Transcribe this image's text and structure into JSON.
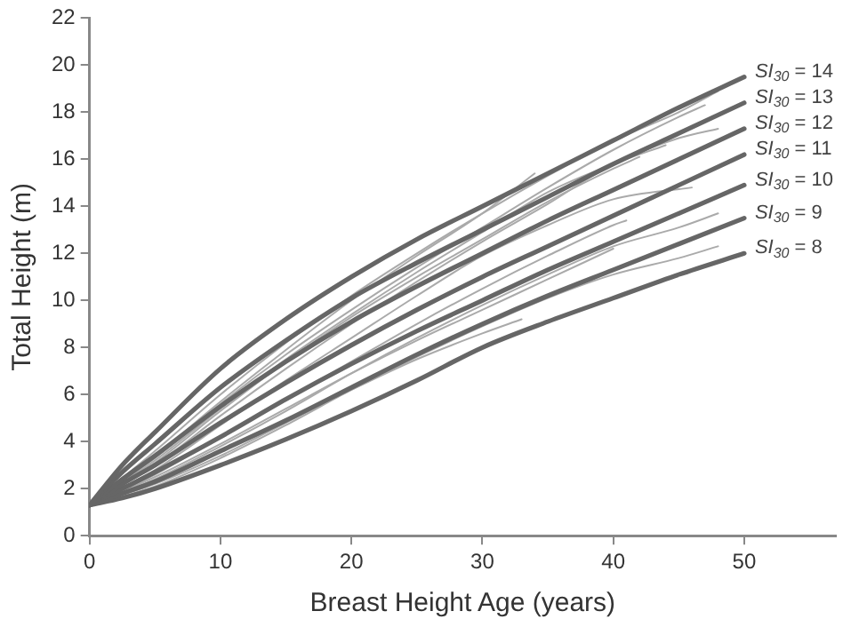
{
  "chart_data": {
    "type": "line",
    "xlabel": "Breast Height Age (years)",
    "ylabel": "Total Height (m)",
    "xlim": [
      0,
      57
    ],
    "xticks": [
      0,
      10,
      20,
      30,
      40,
      50
    ],
    "ylim": [
      0,
      22
    ],
    "yticks": [
      0,
      2,
      4,
      6,
      8,
      10,
      12,
      14,
      16,
      18,
      20,
      22
    ],
    "grid": false,
    "legend": false,
    "marker": "none",
    "line_style": "solid",
    "series": [
      {
        "color": "#aaaaaa",
        "x": [
          0,
          5,
          10,
          15,
          20,
          25,
          30,
          35,
          40,
          45,
          48
        ],
        "values": [
          1.3,
          3.6,
          6.0,
          8.2,
          10.2,
          12.0,
          13.7,
          15.3,
          16.8,
          18.0,
          18.9
        ]
      },
      {
        "color": "#aaaaaa",
        "x": [
          0,
          5,
          10,
          15,
          20,
          25,
          30,
          35,
          40,
          45,
          47
        ],
        "values": [
          1.3,
          3.3,
          5.6,
          7.7,
          9.6,
          11.4,
          13.1,
          14.8,
          16.4,
          17.8,
          18.3
        ]
      },
      {
        "color": "#aaaaaa",
        "x": [
          0,
          5,
          10,
          15,
          20,
          25,
          30,
          35,
          40,
          45,
          48
        ],
        "values": [
          1.3,
          3.0,
          5.1,
          7.1,
          9.0,
          10.8,
          12.5,
          14.1,
          15.8,
          16.9,
          17.3
        ]
      },
      {
        "color": "#aaaaaa",
        "x": [
          0,
          5,
          10,
          15,
          20,
          25,
          30,
          35,
          40,
          42
        ],
        "values": [
          1.3,
          3.1,
          5.3,
          7.4,
          9.3,
          11.0,
          12.6,
          14.2,
          15.6,
          16.1
        ]
      },
      {
        "color": "#aaaaaa",
        "x": [
          0,
          5,
          10,
          15,
          20,
          25,
          30,
          35,
          40,
          46
        ],
        "values": [
          1.3,
          2.8,
          4.7,
          6.6,
          8.4,
          10.2,
          11.9,
          13.2,
          14.3,
          14.8
        ]
      },
      {
        "color": "#aaaaaa",
        "x": [
          0,
          5,
          10,
          15,
          20,
          25,
          30,
          35,
          40,
          45,
          48
        ],
        "values": [
          1.3,
          2.4,
          3.8,
          5.3,
          6.9,
          8.4,
          9.8,
          11.1,
          12.3,
          13.1,
          13.7
        ]
      },
      {
        "color": "#aaaaaa",
        "x": [
          0,
          5,
          10,
          15,
          20,
          25,
          30,
          35,
          40,
          45,
          48
        ],
        "values": [
          1.3,
          2.1,
          3.3,
          4.7,
          6.2,
          7.6,
          8.9,
          10.1,
          11.1,
          11.8,
          12.3
        ]
      },
      {
        "color": "#aaaaaa",
        "x": [
          0,
          5,
          10,
          15,
          20,
          25,
          30,
          33
        ],
        "values": [
          1.3,
          2.2,
          3.4,
          4.8,
          6.2,
          7.5,
          8.6,
          9.2
        ]
      },
      {
        "color": "#aaaaaa",
        "x": [
          0,
          5,
          10,
          15,
          20,
          25,
          30,
          34
        ],
        "values": [
          1.3,
          3.4,
          5.7,
          7.9,
          10.0,
          11.9,
          13.7,
          15.4
        ]
      },
      {
        "color": "#aaaaaa",
        "x": [
          0,
          5,
          10,
          15,
          20,
          25,
          30,
          35,
          40,
          41
        ],
        "values": [
          1.3,
          2.6,
          4.2,
          5.8,
          7.4,
          9.0,
          10.5,
          11.9,
          13.2,
          13.4
        ]
      },
      {
        "color": "#aaaaaa",
        "x": [
          0,
          5,
          10,
          15,
          20,
          25,
          30,
          35,
          40
        ],
        "values": [
          1.3,
          2.5,
          3.9,
          5.4,
          6.9,
          8.3,
          9.6,
          10.9,
          12.2
        ]
      },
      {
        "color": "#aaaaaa",
        "x": [
          0,
          5,
          10,
          15,
          20,
          25,
          30,
          35,
          40,
          44
        ],
        "values": [
          1.3,
          3.2,
          5.4,
          7.5,
          9.4,
          11.2,
          12.9,
          14.6,
          15.8,
          16.6
        ]
      },
      {
        "name": "SI$_{30}$ = 14",
        "color": "#666666",
        "x": [
          0,
          2.5,
          5,
          10,
          15,
          20,
          25,
          30,
          35,
          40,
          45,
          50
        ],
        "values": [
          1.3,
          3.0,
          4.4,
          7.1,
          9.2,
          11.0,
          12.6,
          14.0,
          15.4,
          16.8,
          18.2,
          19.5
        ]
      },
      {
        "name": "SI$_{30}$ = 13",
        "color": "#666666",
        "x": [
          0,
          2.5,
          5,
          10,
          15,
          20,
          25,
          30,
          35,
          40,
          45,
          50
        ],
        "values": [
          1.3,
          2.7,
          3.9,
          6.3,
          8.3,
          10.1,
          11.6,
          13.0,
          14.4,
          15.8,
          17.1,
          18.4
        ]
      },
      {
        "name": "SI$_{30}$ = 12",
        "color": "#666666",
        "x": [
          0,
          2.5,
          5,
          10,
          15,
          20,
          25,
          30,
          35,
          40,
          45,
          50
        ],
        "values": [
          1.3,
          2.4,
          3.4,
          5.5,
          7.4,
          9.1,
          10.6,
          12.0,
          13.4,
          14.7,
          16.0,
          17.3
        ]
      },
      {
        "name": "SI$_{30}$ = 11",
        "color": "#666666",
        "x": [
          0,
          2.5,
          5,
          10,
          15,
          20,
          25,
          30,
          35,
          40,
          45,
          50
        ],
        "values": [
          1.3,
          2.2,
          3.0,
          4.8,
          6.5,
          8.1,
          9.6,
          11.0,
          12.3,
          13.6,
          14.9,
          16.2
        ]
      },
      {
        "name": "SI$_{30}$ = 10",
        "color": "#666666",
        "x": [
          0,
          2.5,
          5,
          10,
          15,
          20,
          25,
          30,
          35,
          40,
          45,
          50
        ],
        "values": [
          1.3,
          2.0,
          2.7,
          4.2,
          5.8,
          7.3,
          8.7,
          10.0,
          11.3,
          12.5,
          13.7,
          14.9
        ]
      },
      {
        "name": "SI$_{30}$ = 9",
        "color": "#666666",
        "x": [
          0,
          2.5,
          5,
          10,
          15,
          20,
          25,
          30,
          35,
          40,
          45,
          50
        ],
        "values": [
          1.3,
          1.8,
          2.3,
          3.6,
          4.9,
          6.3,
          7.7,
          9.0,
          10.2,
          11.3,
          12.4,
          13.5
        ]
      },
      {
        "name": "SI$_{30}$ = 8",
        "color": "#666666",
        "x": [
          0,
          2.5,
          5,
          10,
          15,
          20,
          25,
          30,
          35,
          40,
          45,
          50
        ],
        "values": [
          1.3,
          1.6,
          2.0,
          3.0,
          4.1,
          5.3,
          6.6,
          8.0,
          9.1,
          10.1,
          11.1,
          12.0
        ]
      }
    ]
  }
}
